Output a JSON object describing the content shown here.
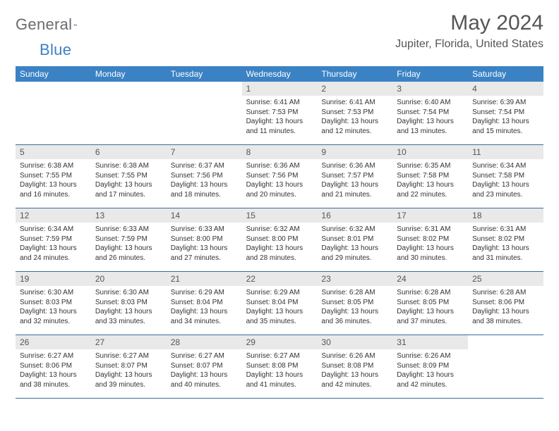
{
  "logo": {
    "text_a": "General",
    "text_b": "Blue"
  },
  "title": "May 2024",
  "location": "Jupiter, Florida, United States",
  "colors": {
    "header_bg": "#3b82c4",
    "header_text": "#ffffff",
    "daynum_bg": "#e9e9e9",
    "daynum_text": "#555555",
    "cell_border": "#3b6a9a",
    "body_text": "#333333",
    "title_text": "#555555",
    "logo_gray": "#6b6b6b",
    "logo_blue": "#3b82c4",
    "page_bg": "#ffffff"
  },
  "layout": {
    "columns": 7,
    "rows": 5,
    "lead_blanks": 3
  },
  "typography": {
    "month_title_pt": 30,
    "location_pt": 16,
    "weekday_pt": 12,
    "daynum_pt": 12,
    "daytext_pt": 10
  },
  "weekdays": [
    "Sunday",
    "Monday",
    "Tuesday",
    "Wednesday",
    "Thursday",
    "Friday",
    "Saturday"
  ],
  "days": [
    {
      "n": "1",
      "sr": "6:41 AM",
      "ss": "7:53 PM",
      "dl": "13 hours and 11 minutes."
    },
    {
      "n": "2",
      "sr": "6:41 AM",
      "ss": "7:53 PM",
      "dl": "13 hours and 12 minutes."
    },
    {
      "n": "3",
      "sr": "6:40 AM",
      "ss": "7:54 PM",
      "dl": "13 hours and 13 minutes."
    },
    {
      "n": "4",
      "sr": "6:39 AM",
      "ss": "7:54 PM",
      "dl": "13 hours and 15 minutes."
    },
    {
      "n": "5",
      "sr": "6:38 AM",
      "ss": "7:55 PM",
      "dl": "13 hours and 16 minutes."
    },
    {
      "n": "6",
      "sr": "6:38 AM",
      "ss": "7:55 PM",
      "dl": "13 hours and 17 minutes."
    },
    {
      "n": "7",
      "sr": "6:37 AM",
      "ss": "7:56 PM",
      "dl": "13 hours and 18 minutes."
    },
    {
      "n": "8",
      "sr": "6:36 AM",
      "ss": "7:56 PM",
      "dl": "13 hours and 20 minutes."
    },
    {
      "n": "9",
      "sr": "6:36 AM",
      "ss": "7:57 PM",
      "dl": "13 hours and 21 minutes."
    },
    {
      "n": "10",
      "sr": "6:35 AM",
      "ss": "7:58 PM",
      "dl": "13 hours and 22 minutes."
    },
    {
      "n": "11",
      "sr": "6:34 AM",
      "ss": "7:58 PM",
      "dl": "13 hours and 23 minutes."
    },
    {
      "n": "12",
      "sr": "6:34 AM",
      "ss": "7:59 PM",
      "dl": "13 hours and 24 minutes."
    },
    {
      "n": "13",
      "sr": "6:33 AM",
      "ss": "7:59 PM",
      "dl": "13 hours and 26 minutes."
    },
    {
      "n": "14",
      "sr": "6:33 AM",
      "ss": "8:00 PM",
      "dl": "13 hours and 27 minutes."
    },
    {
      "n": "15",
      "sr": "6:32 AM",
      "ss": "8:00 PM",
      "dl": "13 hours and 28 minutes."
    },
    {
      "n": "16",
      "sr": "6:32 AM",
      "ss": "8:01 PM",
      "dl": "13 hours and 29 minutes."
    },
    {
      "n": "17",
      "sr": "6:31 AM",
      "ss": "8:02 PM",
      "dl": "13 hours and 30 minutes."
    },
    {
      "n": "18",
      "sr": "6:31 AM",
      "ss": "8:02 PM",
      "dl": "13 hours and 31 minutes."
    },
    {
      "n": "19",
      "sr": "6:30 AM",
      "ss": "8:03 PM",
      "dl": "13 hours and 32 minutes."
    },
    {
      "n": "20",
      "sr": "6:30 AM",
      "ss": "8:03 PM",
      "dl": "13 hours and 33 minutes."
    },
    {
      "n": "21",
      "sr": "6:29 AM",
      "ss": "8:04 PM",
      "dl": "13 hours and 34 minutes."
    },
    {
      "n": "22",
      "sr": "6:29 AM",
      "ss": "8:04 PM",
      "dl": "13 hours and 35 minutes."
    },
    {
      "n": "23",
      "sr": "6:28 AM",
      "ss": "8:05 PM",
      "dl": "13 hours and 36 minutes."
    },
    {
      "n": "24",
      "sr": "6:28 AM",
      "ss": "8:05 PM",
      "dl": "13 hours and 37 minutes."
    },
    {
      "n": "25",
      "sr": "6:28 AM",
      "ss": "8:06 PM",
      "dl": "13 hours and 38 minutes."
    },
    {
      "n": "26",
      "sr": "6:27 AM",
      "ss": "8:06 PM",
      "dl": "13 hours and 38 minutes."
    },
    {
      "n": "27",
      "sr": "6:27 AM",
      "ss": "8:07 PM",
      "dl": "13 hours and 39 minutes."
    },
    {
      "n": "28",
      "sr": "6:27 AM",
      "ss": "8:07 PM",
      "dl": "13 hours and 40 minutes."
    },
    {
      "n": "29",
      "sr": "6:27 AM",
      "ss": "8:08 PM",
      "dl": "13 hours and 41 minutes."
    },
    {
      "n": "30",
      "sr": "6:26 AM",
      "ss": "8:08 PM",
      "dl": "13 hours and 42 minutes."
    },
    {
      "n": "31",
      "sr": "6:26 AM",
      "ss": "8:09 PM",
      "dl": "13 hours and 42 minutes."
    }
  ],
  "labels": {
    "sunrise": "Sunrise:",
    "sunset": "Sunset:",
    "daylight": "Daylight:"
  }
}
